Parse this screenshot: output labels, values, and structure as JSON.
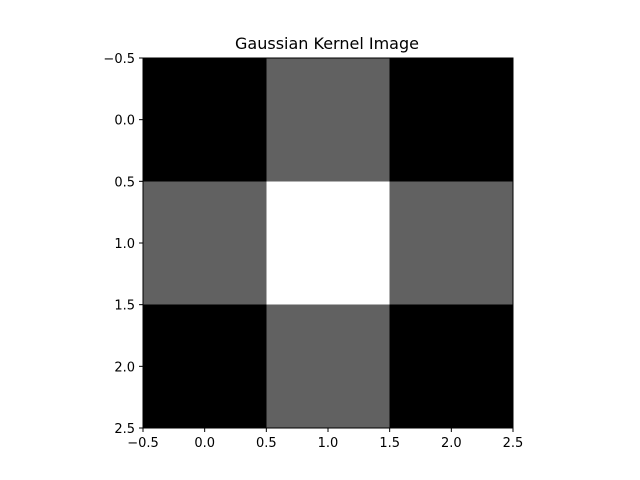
{
  "chart_data": {
    "type": "heatmap",
    "title": "Gaussian Kernel Image",
    "xlabel": "",
    "ylabel": "",
    "colormap": "gray",
    "matrix": [
      [
        0.0,
        0.38,
        0.0
      ],
      [
        0.38,
        1.0,
        0.38
      ],
      [
        0.0,
        0.38,
        0.0
      ]
    ],
    "xlim": [
      -0.5,
      2.5
    ],
    "ylim": [
      2.5,
      -0.5
    ],
    "xticks": [
      -0.5,
      0.0,
      0.5,
      1.0,
      1.5,
      2.0,
      2.5
    ],
    "xtick_labels": [
      "−0.5",
      "0.0",
      "0.5",
      "1.0",
      "1.5",
      "2.0",
      "2.5"
    ],
    "yticks": [
      -0.5,
      0.0,
      0.5,
      1.0,
      1.5,
      2.0,
      2.5
    ],
    "ytick_labels": [
      "−0.5",
      "0.0",
      "0.5",
      "1.0",
      "1.5",
      "2.0",
      "2.5"
    ],
    "grid": false,
    "legend": "none"
  }
}
